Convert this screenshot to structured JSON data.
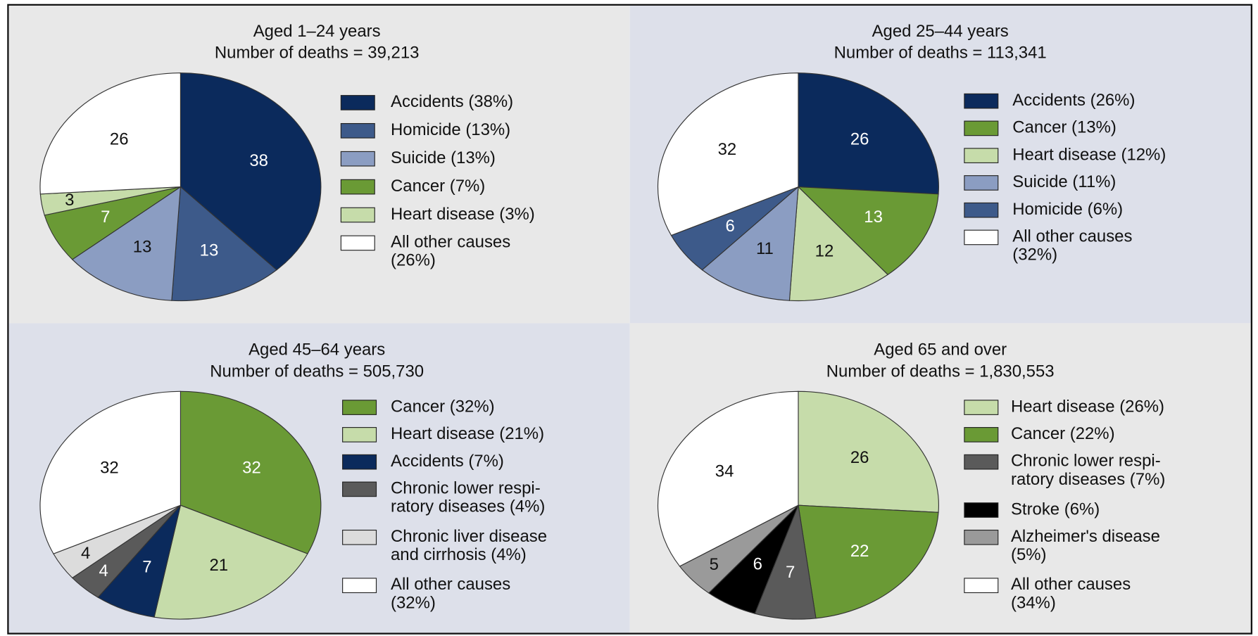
{
  "chart_data": [
    {
      "type": "pie",
      "title": "Aged 1–24 years",
      "subtitle": "Number of deaths = 39,213",
      "categories": [
        "Accidents (38%)",
        "Homicide (13%)",
        "Suicide (13%)",
        "Cancer (7%)",
        "Heart disease (3%)",
        "All other causes\n(26%)"
      ],
      "values": [
        38,
        13,
        13,
        7,
        3,
        26
      ],
      "colors": [
        "#0b2a5c",
        "#3d5a8a",
        "#8b9dc2",
        "#6a9a35",
        "#c6dcaa",
        "#ffffff"
      ]
    },
    {
      "type": "pie",
      "title": "Aged 25–44 years",
      "subtitle": "Number of deaths = 113,341",
      "categories": [
        "Accidents (26%)",
        "Cancer (13%)",
        "Heart disease (12%)",
        "Suicide (11%)",
        "Homicide (6%)",
        "All other causes\n(32%)"
      ],
      "values": [
        26,
        13,
        12,
        11,
        6,
        32
      ],
      "colors": [
        "#0b2a5c",
        "#6a9a35",
        "#c6dcaa",
        "#8b9dc2",
        "#3d5a8a",
        "#ffffff"
      ]
    },
    {
      "type": "pie",
      "title": "Aged 45–64 years",
      "subtitle": "Number of deaths = 505,730",
      "categories": [
        "Cancer (32%)",
        "Heart disease (21%)",
        "Accidents (7%)",
        "Chronic lower respi-\nratory diseases (4%)",
        "Chronic liver disease\nand cirrhosis (4%)",
        "All other causes\n(32%)"
      ],
      "values": [
        32,
        21,
        7,
        4,
        4,
        32
      ],
      "colors": [
        "#6a9a35",
        "#c6dcaa",
        "#0b2a5c",
        "#5a5a5a",
        "#dcdcdc",
        "#ffffff"
      ]
    },
    {
      "type": "pie",
      "title": "Aged 65 and over",
      "subtitle": "Number of deaths = 1,830,553",
      "categories": [
        "Heart disease (26%)",
        "Cancer (22%)",
        "Chronic lower respi-\nratory diseases (7%)",
        "Stroke (6%)",
        "Alzheimer's disease\n(5%)",
        "All other causes\n(34%)"
      ],
      "values": [
        26,
        22,
        7,
        6,
        5,
        34
      ],
      "colors": [
        "#c6dcaa",
        "#6a9a35",
        "#5a5a5a",
        "#000000",
        "#9a9a9a",
        "#ffffff"
      ]
    }
  ]
}
